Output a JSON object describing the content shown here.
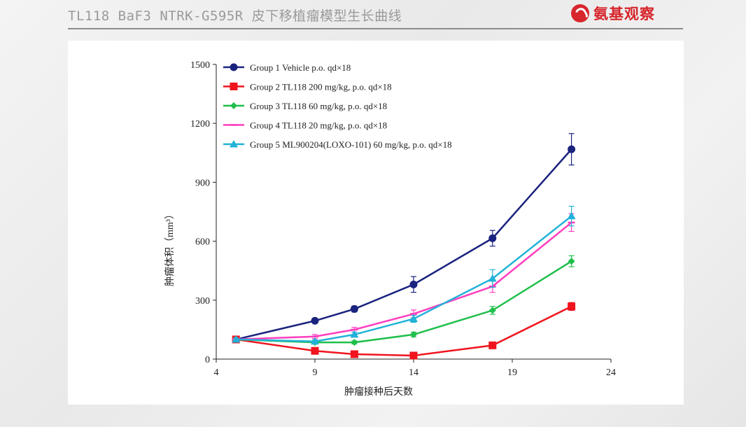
{
  "slide": {
    "title": "TL118 BaF3 NTRK-G595R 皮下移植瘤模型生长曲线",
    "brand": "氨基观察",
    "brand_color": "#d7262c"
  },
  "chart_data": {
    "type": "line",
    "xlabel": "肿瘤接种后天数",
    "ylabel": "肿瘤体积（mm³）",
    "xlim": [
      4,
      24
    ],
    "ylim": [
      0,
      1500
    ],
    "xticks": [
      4,
      9,
      14,
      19,
      24
    ],
    "yticks": [
      0,
      300,
      600,
      900,
      1200,
      1500
    ],
    "legend": "top-left",
    "grid": false,
    "series": [
      {
        "name": "Group 1 Vehicle p.o. qd×18",
        "color": "#1a237e",
        "marker": "circle",
        "x": [
          5,
          9,
          11,
          14,
          18,
          22
        ],
        "y": [
          100,
          195,
          255,
          380,
          615,
          1068
        ],
        "err": [
          8,
          12,
          15,
          40,
          40,
          80
        ]
      },
      {
        "name": "Group 2 TL118 200 mg/kg, p.o. qd×18",
        "color": "#f0141e",
        "marker": "square",
        "x": [
          5,
          9,
          11,
          14,
          18,
          22
        ],
        "y": [
          100,
          42,
          25,
          18,
          70,
          268
        ],
        "err": [
          8,
          8,
          6,
          5,
          10,
          20
        ]
      },
      {
        "name": "Group 3 TL118 60 mg/kg, p.o. qd×18",
        "color": "#1fbf4a",
        "marker": "diamond",
        "x": [
          5,
          9,
          11,
          14,
          18,
          22
        ],
        "y": [
          100,
          85,
          85,
          125,
          248,
          498
        ],
        "err": [
          8,
          8,
          8,
          12,
          20,
          28
        ]
      },
      {
        "name": "Group 4 TL118 20 mg/kg, p.o. qd×18",
        "color": "#ff3ebf",
        "marker": "dash",
        "x": [
          5,
          9,
          11,
          14,
          18,
          22
        ],
        "y": [
          100,
          115,
          150,
          230,
          370,
          695
        ],
        "err": [
          8,
          10,
          12,
          20,
          30,
          45
        ]
      },
      {
        "name": "Group 5 ML900204(LOXO-101) 60 mg/kg, p.o. qd×18",
        "color": "#21b2d8",
        "marker": "triangle",
        "x": [
          5,
          9,
          11,
          14,
          18,
          22
        ],
        "y": [
          100,
          90,
          125,
          205,
          410,
          728
        ],
        "err": [
          8,
          8,
          12,
          18,
          45,
          50
        ]
      }
    ]
  }
}
